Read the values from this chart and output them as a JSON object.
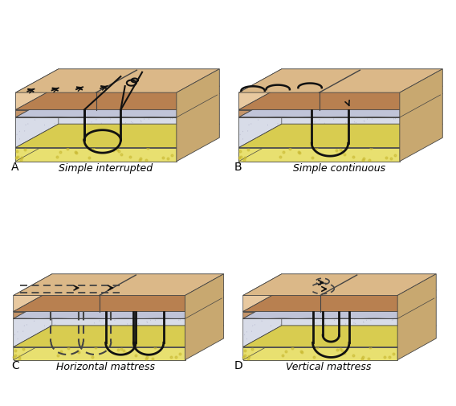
{
  "panels": [
    "A",
    "B",
    "C",
    "D"
  ],
  "labels": [
    "Simple interrupted",
    "Simple continuous",
    "Horizontal mattress",
    "Vertical mattress"
  ],
  "bg_color": "#ffffff",
  "skin_color": "#e8c9a0",
  "skin_top_color": "#dbb888",
  "dermis_color": "#c4956a",
  "subcutaneous_color": "#d8dce8",
  "fat_color": "#e8e070",
  "suture_color": "#111111",
  "dashed_suture_color": "#444444",
  "border_color": "#444444",
  "right_face_color": "#c8a870",
  "label_fontsize": 9,
  "panel_letter_fontsize": 10
}
